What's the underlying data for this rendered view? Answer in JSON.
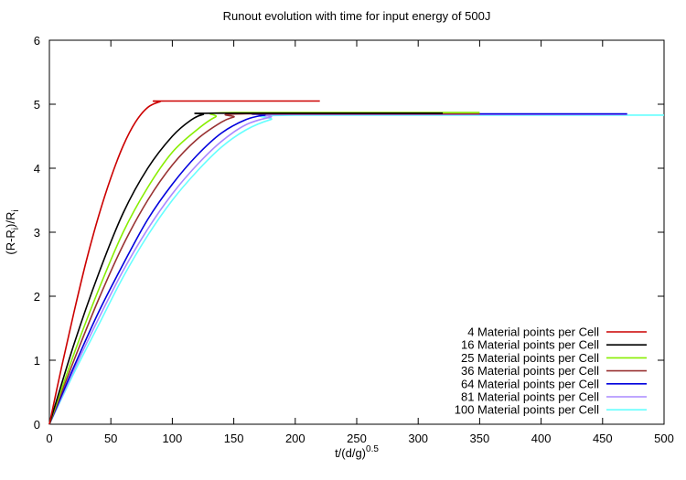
{
  "chart_data": {
    "type": "line",
    "title": "Runout evolution with time for input energy of 500J",
    "xlabel": {
      "base": "t/(d/g)",
      "sup": "0.5"
    },
    "ylabel": {
      "p1": "(R-R",
      "sub1": "i",
      "p2": ")/R",
      "sub2": "i"
    },
    "xlim": [
      0,
      500
    ],
    "ylim": [
      0,
      6
    ],
    "xticks": [
      0,
      50,
      100,
      150,
      200,
      250,
      300,
      350,
      400,
      450,
      500
    ],
    "yticks": [
      0,
      1,
      2,
      3,
      4,
      5,
      6
    ],
    "grid": false,
    "legend_position": "bottom-right",
    "series": [
      {
        "name": "4 Material points per Cell",
        "color": "#cc0000",
        "x": [
          0,
          10,
          20,
          30,
          40,
          50,
          60,
          70,
          80,
          90,
          95,
          220
        ],
        "y": [
          0,
          0.9,
          1.75,
          2.55,
          3.25,
          3.85,
          4.35,
          4.72,
          4.95,
          5.04,
          5.05,
          5.05
        ]
      },
      {
        "name": "16 Material points per Cell",
        "color": "#000000",
        "x": [
          0,
          20,
          40,
          60,
          80,
          100,
          115,
          125,
          135,
          320
        ],
        "y": [
          0,
          1.25,
          2.35,
          3.3,
          4.0,
          4.5,
          4.75,
          4.84,
          4.86,
          4.86
        ]
      },
      {
        "name": "25 Material points per Cell",
        "color": "#88ee00",
        "x": [
          0,
          20,
          40,
          60,
          80,
          100,
          120,
          135,
          150,
          350
        ],
        "y": [
          0,
          1.1,
          2.1,
          3.0,
          3.7,
          4.25,
          4.6,
          4.8,
          4.87,
          4.87
        ]
      },
      {
        "name": "36 Material points per Cell",
        "color": "#993333",
        "x": [
          0,
          20,
          40,
          60,
          80,
          100,
          120,
          140,
          150,
          160,
          350
        ],
        "y": [
          0,
          1.0,
          1.95,
          2.8,
          3.5,
          4.05,
          4.45,
          4.72,
          4.8,
          4.85,
          4.85
        ]
      },
      {
        "name": "64 Material points per Cell",
        "color": "#0000dd",
        "x": [
          0,
          20,
          40,
          60,
          80,
          100,
          120,
          140,
          160,
          175,
          190,
          470
        ],
        "y": [
          0,
          0.9,
          1.75,
          2.5,
          3.2,
          3.75,
          4.2,
          4.55,
          4.76,
          4.83,
          4.85,
          4.85
        ]
      },
      {
        "name": "81 Material points per Cell",
        "color": "#aa88ff",
        "x": [
          0,
          20,
          40,
          60,
          80,
          100,
          120,
          140,
          160,
          180,
          195,
          470
        ],
        "y": [
          0,
          0.85,
          1.65,
          2.4,
          3.05,
          3.6,
          4.05,
          4.42,
          4.68,
          4.8,
          4.84,
          4.84
        ]
      },
      {
        "name": "100 Material points per Cell",
        "color": "#66ffff",
        "x": [
          0,
          20,
          40,
          60,
          80,
          100,
          120,
          140,
          160,
          180,
          200,
          500
        ],
        "y": [
          0,
          0.8,
          1.55,
          2.3,
          2.95,
          3.5,
          3.95,
          4.33,
          4.6,
          4.76,
          4.83,
          4.83
        ]
      }
    ]
  }
}
